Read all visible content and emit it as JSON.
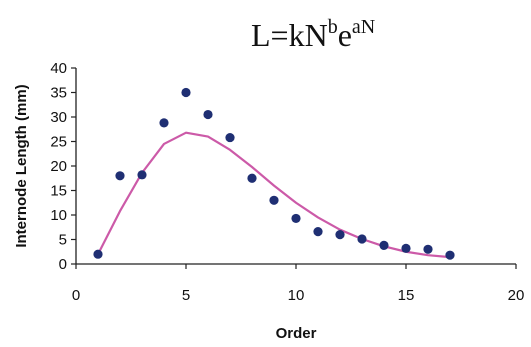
{
  "chart_data": {
    "type": "scatter",
    "title": "L=kN^b e^aN",
    "title_parts": {
      "base1": "L=kN",
      "exp1": "b",
      "base2": "e",
      "exp2": "aN"
    },
    "xlabel": "Order",
    "ylabel": "Internode Length (mm)",
    "xlim": [
      0,
      20
    ],
    "ylim": [
      0,
      40
    ],
    "xticks": [
      0,
      5,
      10,
      15,
      20
    ],
    "yticks": [
      0,
      5,
      10,
      15,
      20,
      25,
      30,
      35,
      40
    ],
    "grid": false,
    "legend": "none",
    "series": [
      {
        "kind": "points",
        "color": "#1f2f73",
        "x": [
          1,
          2,
          3,
          4,
          5,
          6,
          7,
          8,
          9,
          10,
          11,
          12,
          13,
          14,
          15,
          16,
          17
        ],
        "y": [
          2,
          18,
          18.2,
          28.8,
          35,
          30.5,
          25.8,
          17.5,
          13,
          9.3,
          6.6,
          6,
          5.1,
          3.8,
          3.2,
          3,
          1.8
        ]
      },
      {
        "kind": "line",
        "color": "#cc5aa8",
        "x": [
          1,
          2,
          3,
          4,
          5,
          6,
          7,
          8,
          9,
          10,
          11,
          12,
          13,
          14,
          15,
          16,
          17
        ],
        "y": [
          2,
          10.8,
          18.6,
          24.5,
          26.8,
          26,
          23.3,
          19.8,
          16,
          12.5,
          9.5,
          7,
          5.1,
          3.6,
          2.5,
          1.8,
          1.4
        ]
      }
    ]
  }
}
